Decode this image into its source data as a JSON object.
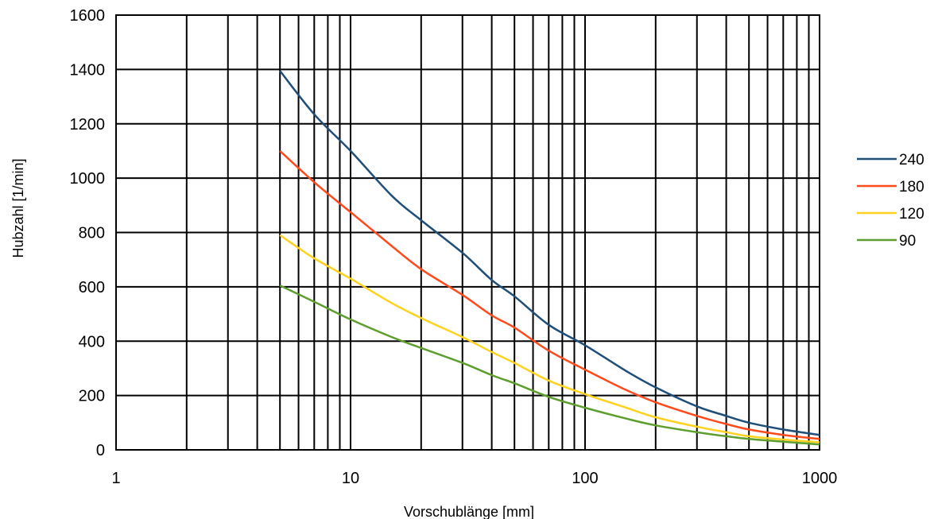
{
  "chart_data": {
    "type": "line",
    "x_scale": "log",
    "xlabel": "Vorschublänge [mm]",
    "ylabel": "Hubzahl [1/min]",
    "xlim": [
      1,
      1000
    ],
    "ylim": [
      0,
      1600
    ],
    "x_ticks": [
      "1",
      "10",
      "100",
      "1000"
    ],
    "x_tick_values": [
      1,
      10,
      100,
      1000
    ],
    "y_ticks": [
      "0",
      "200",
      "400",
      "600",
      "800",
      "1000",
      "1200",
      "1400",
      "1600"
    ],
    "y_tick_values": [
      0,
      200,
      400,
      600,
      800,
      1000,
      1200,
      1400,
      1600
    ],
    "grid": true,
    "legend_position": "right",
    "x": [
      5,
      7,
      10,
      15,
      20,
      30,
      40,
      50,
      70,
      100,
      150,
      200,
      300,
      400,
      500,
      700,
      1000
    ],
    "series": [
      {
        "name": "240",
        "color": "#1f4e79",
        "values": [
          1395,
          1235,
          1100,
          935,
          845,
          725,
          625,
          565,
          460,
          385,
          290,
          230,
          160,
          125,
          100,
          75,
          55
        ]
      },
      {
        "name": "180",
        "color": "#ff4a1c",
        "values": [
          1100,
          985,
          875,
          750,
          665,
          570,
          495,
          450,
          365,
          295,
          220,
          175,
          125,
          95,
          75,
          55,
          40
        ]
      },
      {
        "name": "120",
        "color": "#ffd21f",
        "values": [
          790,
          705,
          630,
          540,
          485,
          415,
          360,
          320,
          255,
          205,
          155,
          120,
          85,
          65,
          50,
          38,
          28
        ]
      },
      {
        "name": "90",
        "color": "#5e9e2e",
        "values": [
          605,
          545,
          480,
          415,
          375,
          320,
          275,
          245,
          195,
          155,
          115,
          90,
          65,
          50,
          40,
          30,
          20
        ]
      }
    ]
  }
}
